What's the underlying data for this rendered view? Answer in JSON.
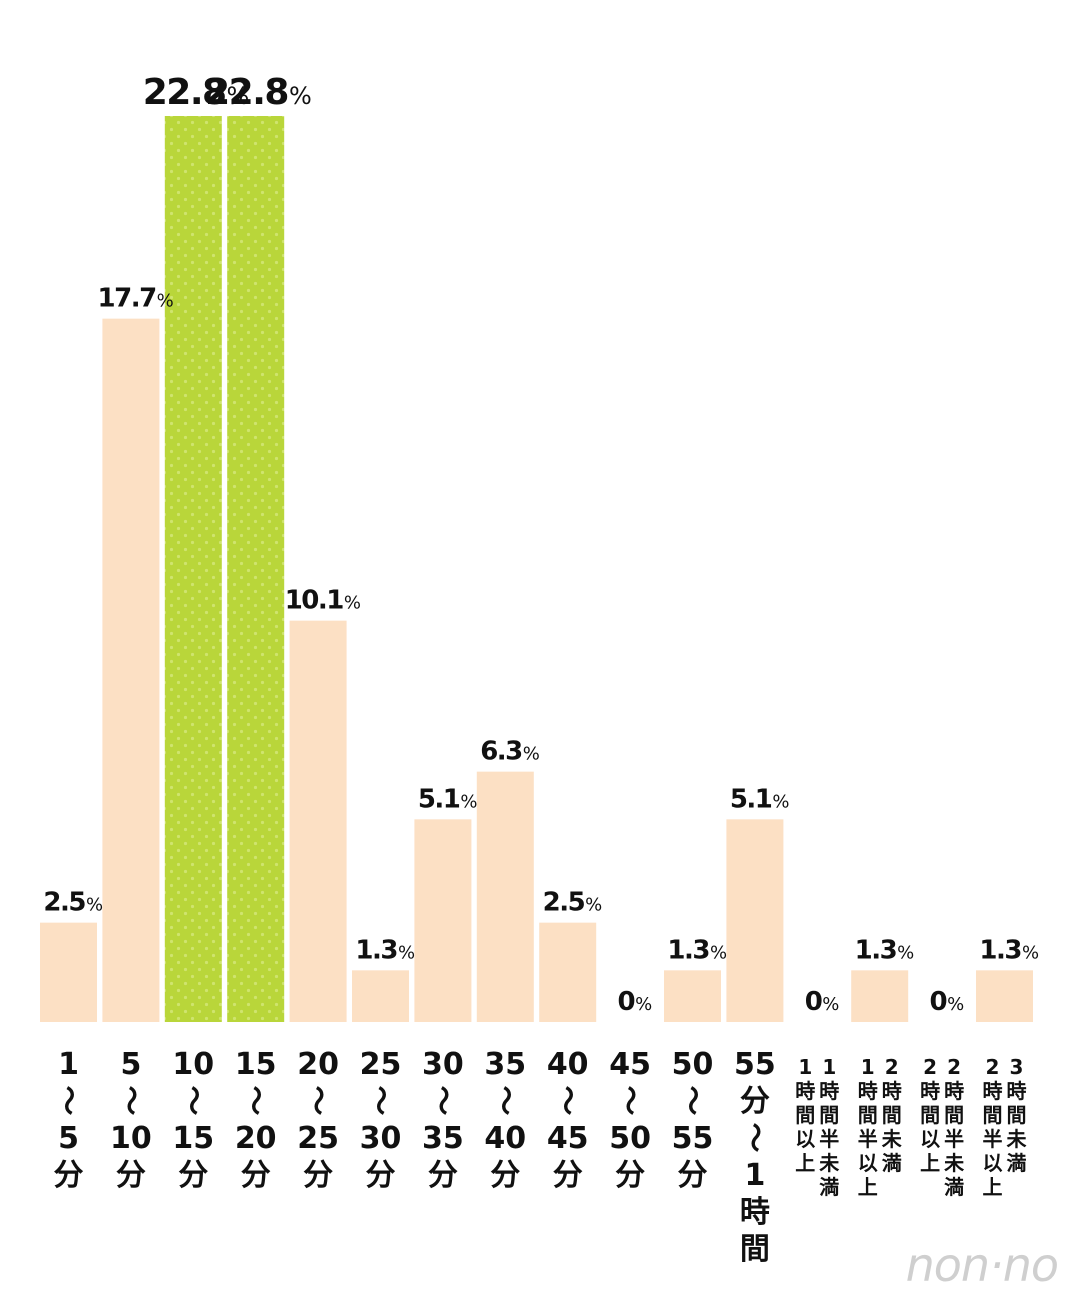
{
  "chart_data": {
    "type": "bar",
    "title": "",
    "xlabel": "",
    "ylabel": "",
    "ylim": [
      0,
      22.8
    ],
    "grid": false,
    "legend": "none",
    "categories": [
      "1〜5分",
      "5〜10分",
      "10〜15分",
      "15〜20分",
      "20〜25分",
      "25〜30分",
      "30〜35分",
      "35〜40分",
      "40〜45分",
      "45〜50分",
      "50〜55分",
      "55分〜1時間",
      "1時間以上1時間半未満",
      "1時間半以上2時間未満",
      "2時間以上2時間半未満",
      "2時間半以上3時間未満"
    ],
    "category_lines": [
      [
        [
          "1"
        ],
        [
          "〜"
        ],
        [
          "5"
        ],
        [
          "分"
        ]
      ],
      [
        [
          "5"
        ],
        [
          "〜"
        ],
        [
          "10"
        ],
        [
          "分"
        ]
      ],
      [
        [
          "10"
        ],
        [
          "〜"
        ],
        [
          "15"
        ],
        [
          "分"
        ]
      ],
      [
        [
          "15"
        ],
        [
          "〜"
        ],
        [
          "20"
        ],
        [
          "分"
        ]
      ],
      [
        [
          "20"
        ],
        [
          "〜"
        ],
        [
          "25"
        ],
        [
          "分"
        ]
      ],
      [
        [
          "25"
        ],
        [
          "〜"
        ],
        [
          "30"
        ],
        [
          "分"
        ]
      ],
      [
        [
          "30"
        ],
        [
          "〜"
        ],
        [
          "35"
        ],
        [
          "分"
        ]
      ],
      [
        [
          "35"
        ],
        [
          "〜"
        ],
        [
          "40"
        ],
        [
          "分"
        ]
      ],
      [
        [
          "40"
        ],
        [
          "〜"
        ],
        [
          "45"
        ],
        [
          "分"
        ]
      ],
      [
        [
          "45"
        ],
        [
          "〜"
        ],
        [
          "50"
        ],
        [
          "分"
        ]
      ],
      [
        [
          "50"
        ],
        [
          "〜"
        ],
        [
          "55"
        ],
        [
          "分"
        ]
      ],
      [
        [
          "55"
        ],
        [
          "分"
        ],
        [
          "〜"
        ],
        [
          "1"
        ],
        [
          "時"
        ],
        [
          "間"
        ]
      ],
      [
        [
          "1",
          "1"
        ],
        [
          "時",
          "時"
        ],
        [
          "間",
          "間"
        ],
        [
          "以",
          "半"
        ],
        [
          "上",
          "未"
        ],
        [
          "",
          "満"
        ]
      ],
      [
        [
          "1",
          "2"
        ],
        [
          "時",
          "時"
        ],
        [
          "間",
          "間"
        ],
        [
          "半",
          "未"
        ],
        [
          "以",
          "満"
        ],
        [
          "上",
          ""
        ]
      ],
      [
        [
          "2",
          "2"
        ],
        [
          "時",
          "時"
        ],
        [
          "間",
          "間"
        ],
        [
          "以",
          "半"
        ],
        [
          "上",
          "未"
        ],
        [
          "",
          "満"
        ]
      ],
      [
        [
          "2",
          "3"
        ],
        [
          "時",
          "時"
        ],
        [
          "間",
          "間"
        ],
        [
          "半",
          "未"
        ],
        [
          "以",
          "満"
        ],
        [
          "上",
          ""
        ]
      ]
    ],
    "values": [
      2.5,
      17.7,
      22.8,
      22.8,
      10.1,
      1.3,
      5.1,
      6.3,
      2.5,
      0,
      1.3,
      5.1,
      0,
      1.3,
      0,
      1.3
    ],
    "value_labels": [
      "2.5",
      "17.7",
      "22.8",
      "22.8",
      "10.1",
      "1.3",
      "5.1",
      "6.3",
      "2.5",
      "0",
      "1.3",
      "5.1",
      "0",
      "1.3",
      "0",
      "1.3"
    ],
    "unit": "%",
    "highlight": [
      false,
      false,
      true,
      true,
      false,
      false,
      false,
      false,
      false,
      false,
      false,
      false,
      false,
      false,
      false,
      false
    ],
    "colors": {
      "bar": "#fce0c4",
      "highlight": "#b9d63a",
      "highlight_dot": "#cfe46e",
      "text": "#111111"
    }
  },
  "logo": {
    "text": "non-no"
  }
}
